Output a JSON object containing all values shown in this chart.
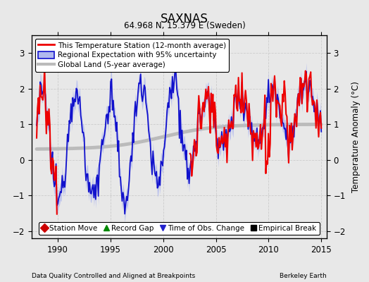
{
  "title": "SAXNAS",
  "subtitle": "64.968 N, 15.379 E (Sweden)",
  "ylabel": "Temperature Anomaly (°C)",
  "xlabel_left": "Data Quality Controlled and Aligned at Breakpoints",
  "xlabel_right": "Berkeley Earth",
  "ylim": [
    -2.2,
    3.5
  ],
  "xlim": [
    1987.5,
    2015.5
  ],
  "xticks": [
    1990,
    1995,
    2000,
    2005,
    2010,
    2015
  ],
  "yticks": [
    -2,
    -1,
    0,
    1,
    2,
    3
  ],
  "color_station": "#ee0000",
  "color_regional": "#1111cc",
  "color_uncertainty": "#b0b8ee",
  "color_global": "#bbbbbb",
  "background_color": "#e8e8e8",
  "bottom_legend": [
    {
      "label": "Station Move",
      "color": "#cc0000",
      "marker": "D"
    },
    {
      "label": "Record Gap",
      "color": "#008800",
      "marker": "^"
    },
    {
      "label": "Time of Obs. Change",
      "color": "#2222cc",
      "marker": "v"
    },
    {
      "label": "Empirical Break",
      "color": "#000000",
      "marker": "s"
    }
  ]
}
